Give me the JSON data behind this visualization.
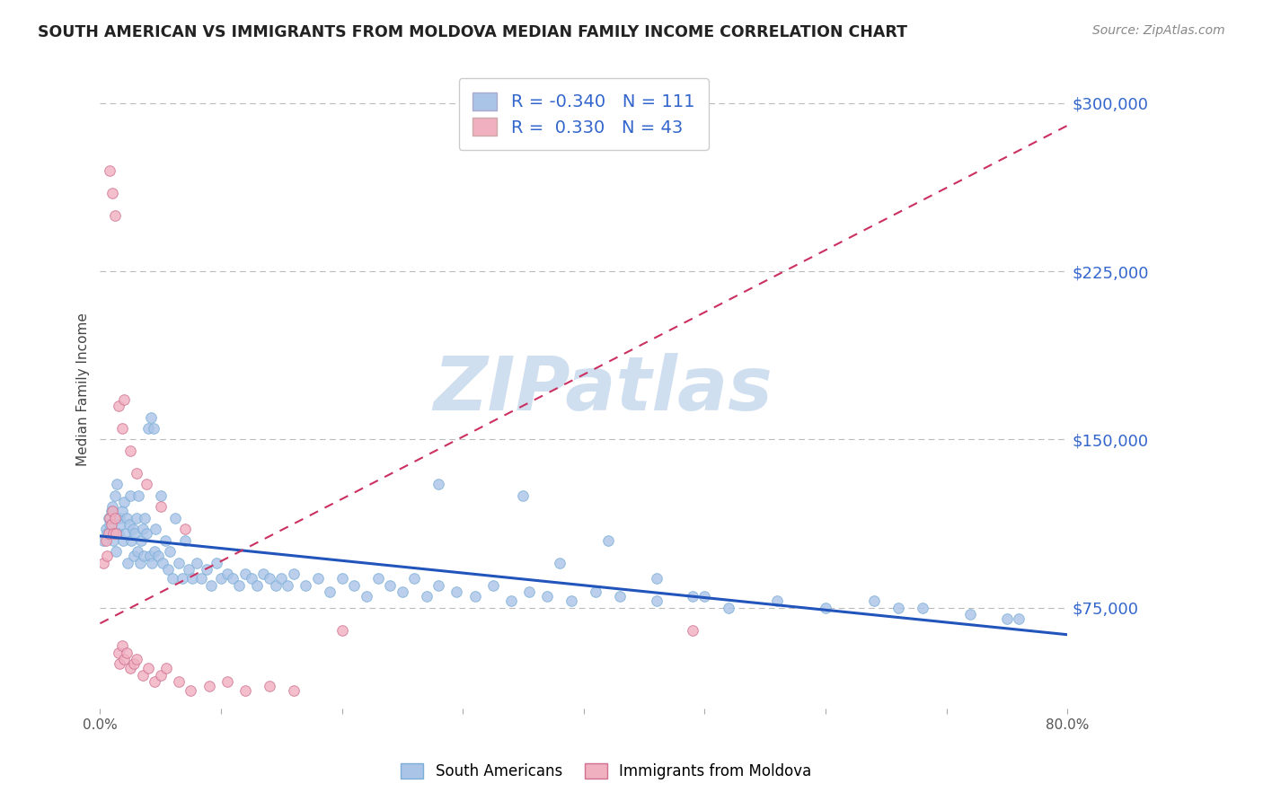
{
  "title": "SOUTH AMERICAN VS IMMIGRANTS FROM MOLDOVA MEDIAN FAMILY INCOME CORRELATION CHART",
  "source": "Source: ZipAtlas.com",
  "ylabel": "Median Family Income",
  "xlim": [
    0.0,
    0.8
  ],
  "ylim": [
    30000,
    315000
  ],
  "yticks": [
    75000,
    150000,
    225000,
    300000
  ],
  "ytick_labels": [
    "$75,000",
    "$150,000",
    "$225,000",
    "$300,000"
  ],
  "xticks": [
    0.0,
    0.1,
    0.2,
    0.3,
    0.4,
    0.5,
    0.6,
    0.7,
    0.8
  ],
  "xtick_labels": [
    "0.0%",
    "",
    "",
    "",
    "",
    "",
    "",
    "",
    "80.0%"
  ],
  "series": [
    {
      "name": "South Americans",
      "color": "#aac4e8",
      "border_color": "#7aaed6",
      "R": -0.34,
      "N": 111,
      "trend_color": "#2255bb",
      "trend_style": "solid",
      "trend_x": [
        0.0,
        0.8
      ],
      "trend_y": [
        107000,
        63000
      ]
    },
    {
      "name": "Immigrants from Moldova",
      "color": "#f0b0c0",
      "border_color": "#d07090",
      "R": 0.33,
      "N": 43,
      "trend_color": "#cc3060",
      "trend_style": "dashed",
      "trend_x": [
        0.0,
        0.8
      ],
      "trend_y": [
        68000,
        290000
      ]
    }
  ],
  "watermark_text": "ZIPatlas",
  "watermark_color": "#d0dff0",
  "blue_scatter_x": [
    0.003,
    0.005,
    0.006,
    0.007,
    0.008,
    0.009,
    0.01,
    0.011,
    0.012,
    0.013,
    0.014,
    0.015,
    0.016,
    0.017,
    0.018,
    0.019,
    0.02,
    0.021,
    0.022,
    0.023,
    0.024,
    0.025,
    0.026,
    0.027,
    0.028,
    0.029,
    0.03,
    0.031,
    0.032,
    0.033,
    0.034,
    0.035,
    0.036,
    0.037,
    0.038,
    0.04,
    0.041,
    0.042,
    0.043,
    0.044,
    0.045,
    0.046,
    0.048,
    0.05,
    0.052,
    0.054,
    0.056,
    0.058,
    0.06,
    0.062,
    0.065,
    0.068,
    0.07,
    0.073,
    0.076,
    0.08,
    0.084,
    0.088,
    0.092,
    0.096,
    0.1,
    0.105,
    0.11,
    0.115,
    0.12,
    0.125,
    0.13,
    0.135,
    0.14,
    0.145,
    0.15,
    0.155,
    0.16,
    0.17,
    0.18,
    0.19,
    0.2,
    0.21,
    0.22,
    0.23,
    0.24,
    0.25,
    0.26,
    0.27,
    0.28,
    0.295,
    0.31,
    0.325,
    0.34,
    0.355,
    0.37,
    0.39,
    0.41,
    0.43,
    0.46,
    0.49,
    0.52,
    0.56,
    0.6,
    0.64,
    0.68,
    0.72,
    0.76,
    0.35,
    0.28,
    0.42,
    0.5,
    0.38,
    0.46,
    0.75,
    0.66
  ],
  "blue_scatter_y": [
    105000,
    110000,
    108000,
    115000,
    112000,
    118000,
    120000,
    105000,
    125000,
    100000,
    130000,
    108000,
    115000,
    112000,
    118000,
    105000,
    122000,
    108000,
    115000,
    95000,
    112000,
    125000,
    105000,
    110000,
    98000,
    108000,
    115000,
    100000,
    125000,
    95000,
    105000,
    110000,
    98000,
    115000,
    108000,
    155000,
    98000,
    160000,
    95000,
    155000,
    100000,
    110000,
    98000,
    125000,
    95000,
    105000,
    92000,
    100000,
    88000,
    115000,
    95000,
    88000,
    105000,
    92000,
    88000,
    95000,
    88000,
    92000,
    85000,
    95000,
    88000,
    90000,
    88000,
    85000,
    90000,
    88000,
    85000,
    90000,
    88000,
    85000,
    88000,
    85000,
    90000,
    85000,
    88000,
    82000,
    88000,
    85000,
    80000,
    88000,
    85000,
    82000,
    88000,
    80000,
    85000,
    82000,
    80000,
    85000,
    78000,
    82000,
    80000,
    78000,
    82000,
    80000,
    78000,
    80000,
    75000,
    78000,
    75000,
    78000,
    75000,
    72000,
    70000,
    125000,
    130000,
    105000,
    80000,
    95000,
    88000,
    70000,
    75000
  ],
  "pink_scatter_x": [
    0.003,
    0.005,
    0.006,
    0.007,
    0.008,
    0.009,
    0.01,
    0.011,
    0.012,
    0.013,
    0.015,
    0.016,
    0.018,
    0.02,
    0.022,
    0.025,
    0.028,
    0.03,
    0.035,
    0.04,
    0.045,
    0.05,
    0.055,
    0.065,
    0.075,
    0.09,
    0.105,
    0.12,
    0.14,
    0.16,
    0.008,
    0.01,
    0.012,
    0.015,
    0.018,
    0.02,
    0.025,
    0.03,
    0.038,
    0.05,
    0.07,
    0.2,
    0.49
  ],
  "pink_scatter_y": [
    95000,
    105000,
    98000,
    108000,
    115000,
    112000,
    118000,
    108000,
    115000,
    108000,
    55000,
    50000,
    58000,
    52000,
    55000,
    48000,
    50000,
    52000,
    45000,
    48000,
    42000,
    45000,
    48000,
    42000,
    38000,
    40000,
    42000,
    38000,
    40000,
    38000,
    270000,
    260000,
    250000,
    165000,
    155000,
    168000,
    145000,
    135000,
    130000,
    120000,
    110000,
    65000,
    65000
  ]
}
